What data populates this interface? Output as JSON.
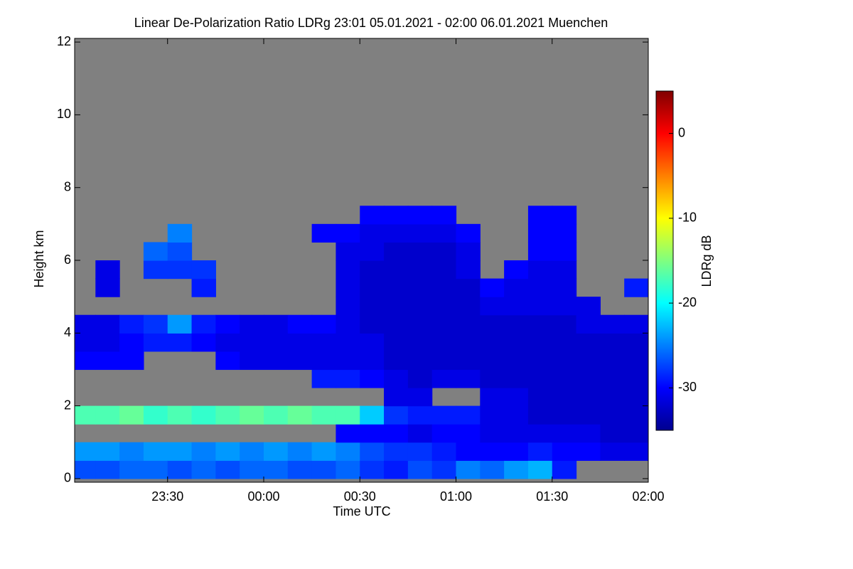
{
  "chart_data": {
    "type": "heatmap",
    "title": "Linear De-Polarization Ratio LDRg   23:01 05.01.2021 - 02:00 06.01.2021 Muenchen",
    "xlabel": "Time UTC",
    "ylabel": "Height km",
    "colorbar_label": "LDRg dB",
    "colormap": "jet",
    "missing_color": "#808080",
    "xlim": [
      23.0167,
      26.0
    ],
    "xticks": [
      {
        "value": 23.5,
        "label": "23:30"
      },
      {
        "value": 24.0,
        "label": "00:00"
      },
      {
        "value": 24.5,
        "label": "00:30"
      },
      {
        "value": 25.0,
        "label": "01:00"
      },
      {
        "value": 25.5,
        "label": "01:30"
      },
      {
        "value": 26.0,
        "label": "02:00"
      }
    ],
    "ylim": [
      -0.1,
      12.1
    ],
    "yticks": [
      0,
      2,
      4,
      6,
      8,
      10,
      12
    ],
    "zlim": [
      -35,
      5
    ],
    "zticks": [
      0,
      -10,
      -20,
      -30
    ],
    "x": [
      23.0625,
      23.1875,
      23.3125,
      23.4375,
      23.5625,
      23.6875,
      23.8125,
      23.9375,
      24.0625,
      24.1875,
      24.3125,
      24.4375,
      24.5625,
      24.6875,
      24.8125,
      24.9375,
      25.0625,
      25.1875,
      25.3125,
      25.4375,
      25.5625,
      25.6875,
      25.8125,
      25.9375
    ],
    "y": [
      0.25,
      0.75,
      1.25,
      1.75,
      2.25,
      2.75,
      3.25,
      3.75,
      4.25,
      4.75,
      5.25,
      5.75,
      6.25,
      6.75,
      7.25,
      7.75
    ],
    "z": [
      [
        -27,
        -24,
        null,
        -17,
        null,
        null,
        -30,
        -31,
        -31,
        null,
        null,
        null,
        null,
        null,
        null,
        null
      ],
      [
        -27,
        -24,
        null,
        -17,
        null,
        null,
        -30,
        -31,
        -31,
        null,
        -31,
        -31,
        null,
        null,
        null,
        null
      ],
      [
        -26,
        -25,
        null,
        -16,
        null,
        null,
        -30,
        -30,
        -29,
        null,
        null,
        null,
        null,
        null,
        null,
        null
      ],
      [
        -26,
        -24,
        null,
        -18,
        null,
        null,
        null,
        -29,
        -28,
        null,
        null,
        -28,
        -26,
        null,
        null,
        null
      ],
      [
        -27,
        -24,
        null,
        -17,
        null,
        null,
        null,
        -29,
        -24,
        null,
        null,
        -28,
        -27,
        -25,
        null,
        null
      ],
      [
        -26,
        -25,
        null,
        -18,
        null,
        null,
        null,
        -30,
        -29,
        null,
        -29,
        -28,
        null,
        null,
        null,
        null
      ],
      [
        -27,
        -24,
        null,
        -17,
        null,
        null,
        -30,
        -31,
        -30,
        null,
        null,
        null,
        null,
        null,
        null,
        null
      ],
      [
        -26,
        -25,
        null,
        -16,
        null,
        null,
        -31,
        -31,
        -31,
        null,
        null,
        null,
        null,
        null,
        null,
        null
      ],
      [
        -26,
        -24,
        null,
        -17,
        null,
        null,
        -31,
        -31,
        -31,
        null,
        null,
        null,
        null,
        null,
        null,
        null
      ],
      [
        -27,
        -25,
        null,
        -16,
        null,
        null,
        -31,
        -31,
        -30,
        null,
        null,
        null,
        null,
        null,
        null,
        null
      ],
      [
        -27,
        -24,
        null,
        -17,
        null,
        -29,
        -31,
        -31,
        -30,
        null,
        null,
        null,
        null,
        -30,
        null,
        null
      ],
      [
        -26,
        -25,
        -30,
        -17,
        null,
        -29,
        -31,
        -31,
        -31,
        -31,
        -31,
        -31,
        -31,
        -30,
        null,
        null
      ],
      [
        -28,
        -27,
        -30,
        -22,
        null,
        -30,
        -31,
        -31,
        -32,
        -32,
        -32,
        -32,
        -31,
        -31,
        -30,
        null
      ],
      [
        -29,
        -28,
        -30,
        -28,
        -31,
        -31,
        -32,
        -32,
        -32,
        -32,
        -32,
        -32,
        -32,
        -31,
        -30,
        null
      ],
      [
        -27,
        -28,
        -31,
        -29,
        -31,
        -32,
        -32,
        -32,
        -32,
        -32,
        -32,
        -32,
        -32,
        -31,
        -30,
        null
      ],
      [
        -28,
        -29,
        -30,
        -29,
        null,
        -31,
        -32,
        -32,
        -32,
        -32,
        -32,
        -32,
        -32,
        -31,
        -30,
        null
      ],
      [
        -25,
        -30,
        -30,
        -29,
        null,
        -31,
        -32,
        -32,
        -32,
        -32,
        -32,
        -31,
        -31,
        -30,
        null,
        null
      ],
      [
        -26,
        -30,
        -31,
        -31,
        -31,
        -32,
        -32,
        -32,
        -32,
        -31,
        -30,
        null,
        null,
        null,
        null,
        null
      ],
      [
        -24,
        -30,
        -31,
        -31,
        -31,
        -32,
        -32,
        -32,
        -32,
        -31,
        -31,
        -30,
        null,
        null,
        null,
        null
      ],
      [
        -23,
        -29,
        -31,
        -32,
        -32,
        -32,
        -32,
        -32,
        -32,
        -31,
        -31,
        -31,
        -30,
        -30,
        -30,
        null
      ],
      [
        -29,
        -30,
        -31,
        -32,
        -32,
        -32,
        -32,
        -32,
        -32,
        -31,
        -31,
        -31,
        -30,
        -30,
        -30,
        null
      ],
      [
        null,
        -30,
        -31,
        -32,
        -32,
        -32,
        -32,
        -32,
        -31,
        -31,
        null,
        null,
        null,
        null,
        null,
        null
      ],
      [
        null,
        -31,
        -32,
        -32,
        -32,
        -32,
        -32,
        -32,
        -31,
        null,
        null,
        null,
        null,
        null,
        null,
        null
      ],
      [
        null,
        -31,
        -32,
        -32,
        -32,
        -32,
        -32,
        -32,
        -31,
        null,
        -29,
        null,
        null,
        null,
        null,
        null
      ]
    ]
  }
}
